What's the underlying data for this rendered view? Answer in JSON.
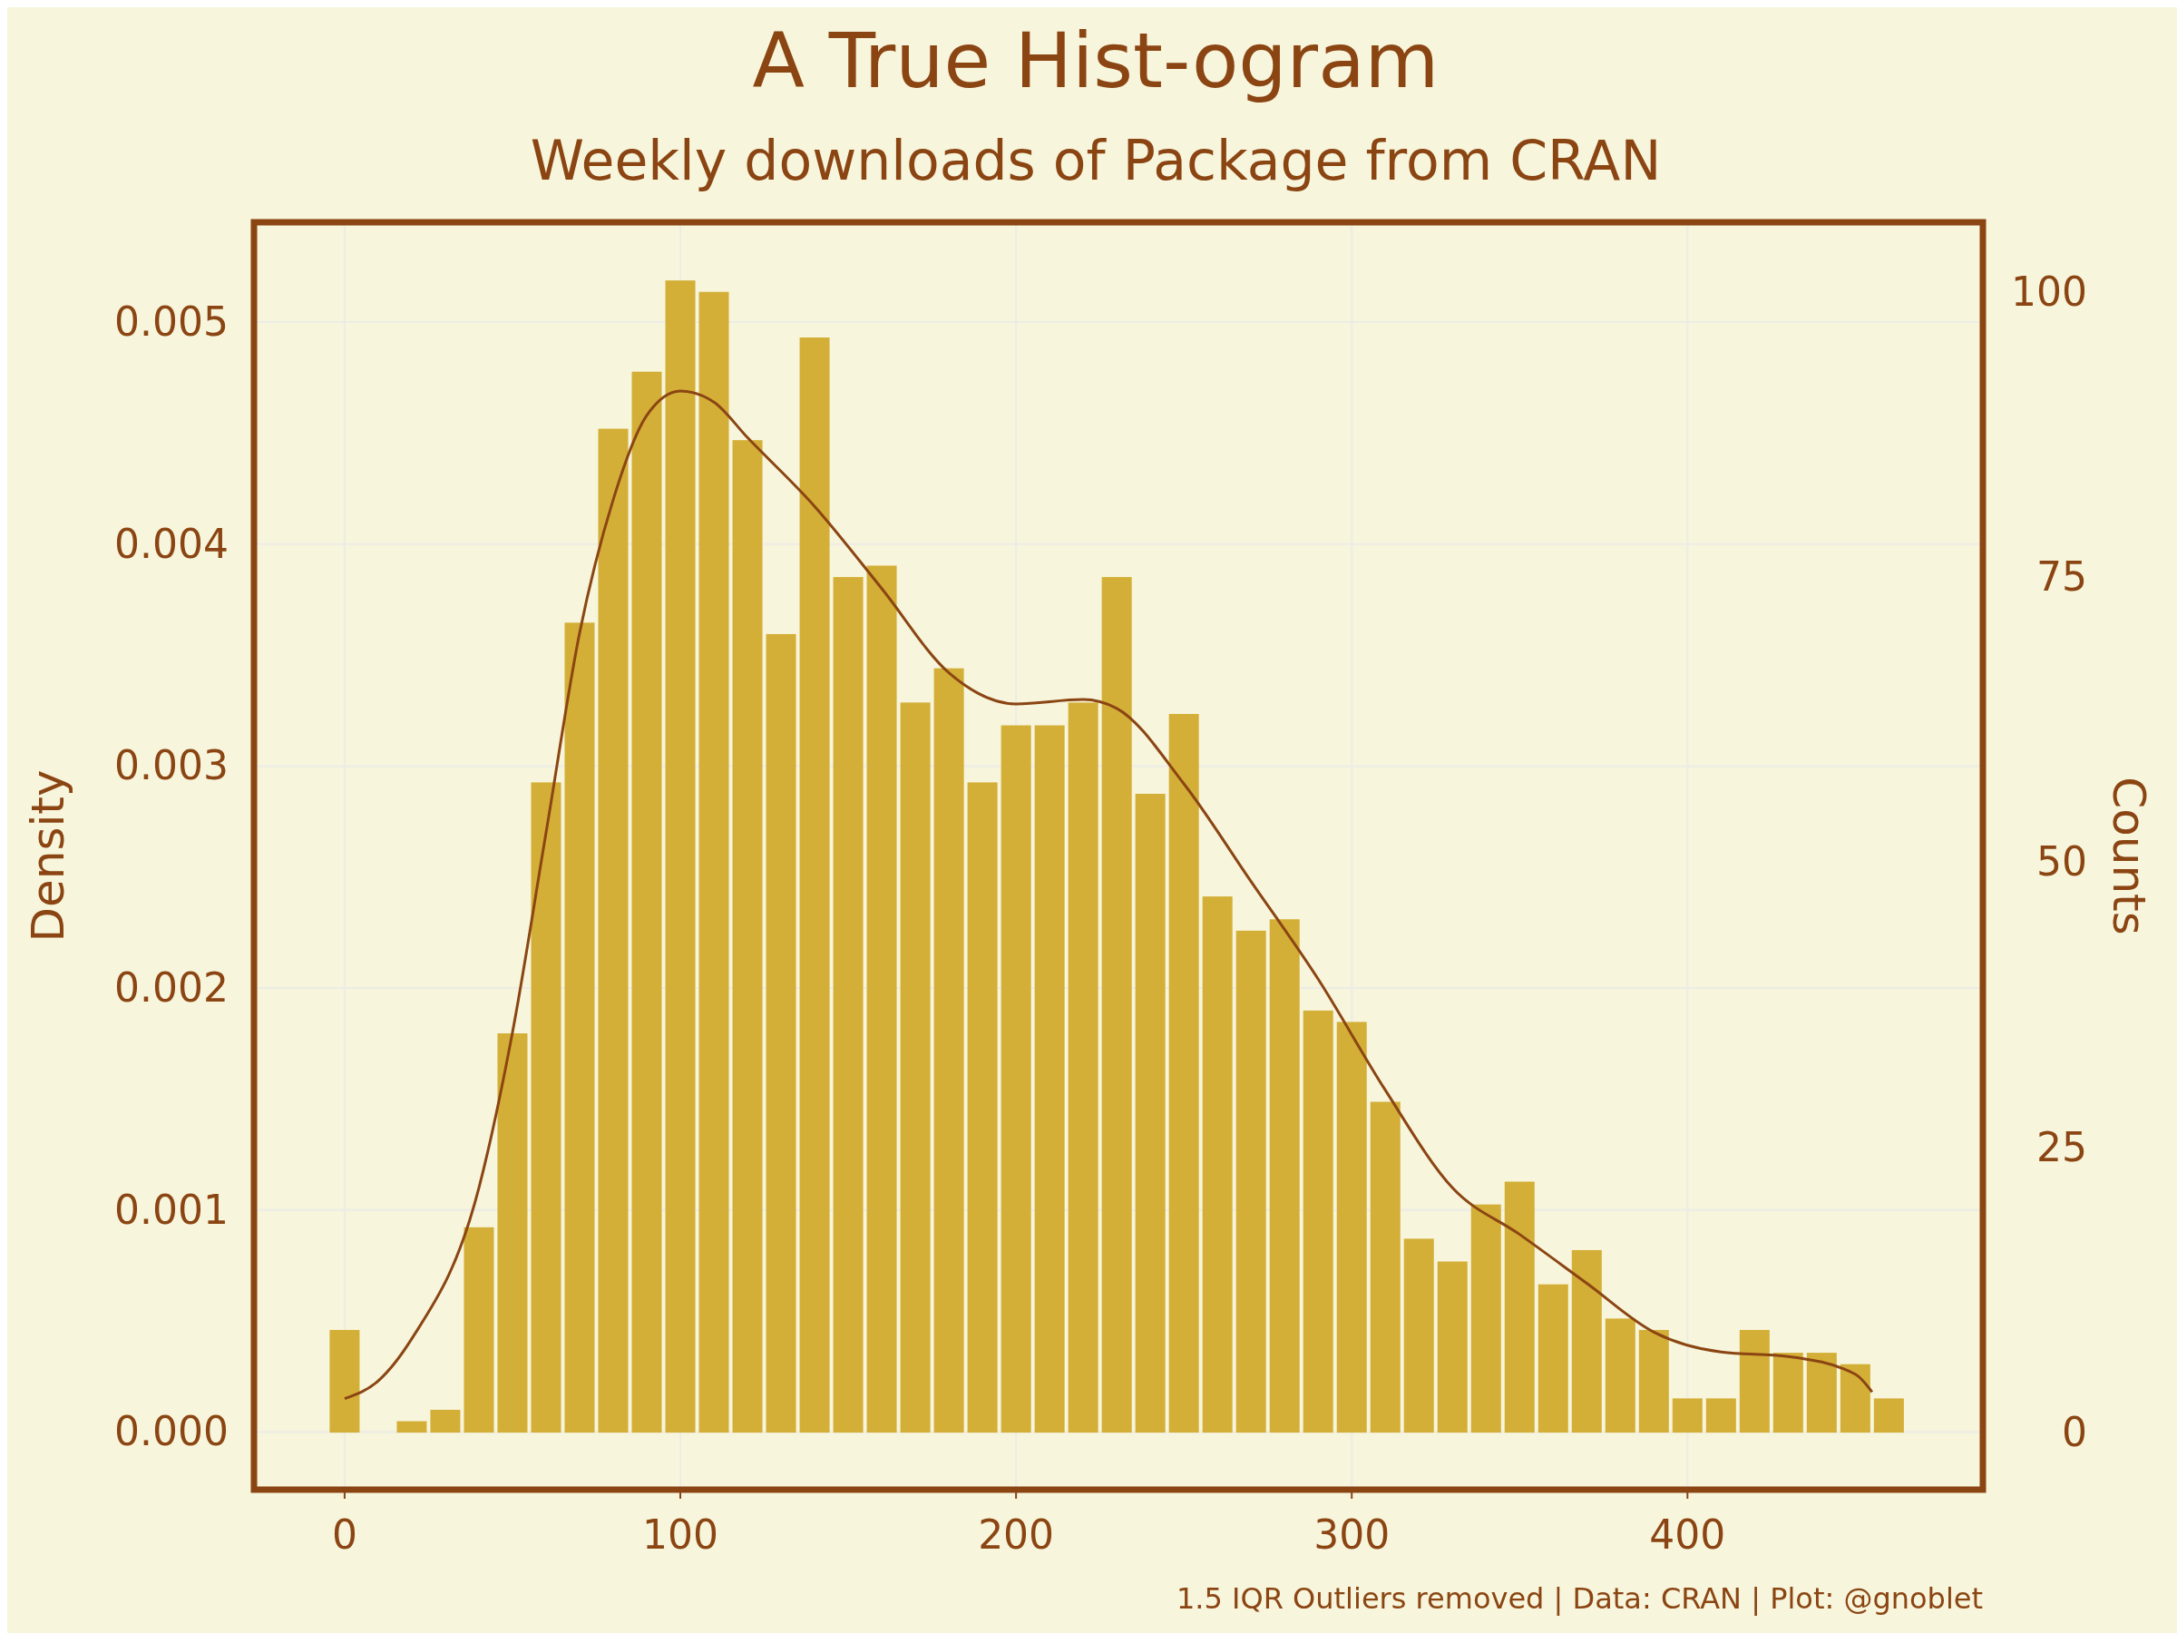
{
  "chart_data": {
    "type": "histogram",
    "title": "A True Hist-ogram",
    "subtitle": "Weekly downloads of Package from CRAN",
    "ylabel": "Density",
    "y2label": "Counts",
    "annotations": [
      "1.5 IQR Outliers removed | Data: CRAN | Plot: @gnoblet"
    ],
    "bins": [
      -5,
      5,
      15,
      25,
      35,
      45,
      55,
      65,
      75,
      85,
      95,
      105,
      115,
      125,
      135,
      145,
      155,
      165,
      175,
      185,
      195,
      205,
      215,
      225,
      235,
      245,
      255,
      265,
      275,
      285,
      295,
      305,
      315,
      325,
      335,
      345,
      355,
      365,
      375,
      385,
      395,
      405,
      415,
      425,
      435,
      445,
      455,
      465
    ],
    "series": [
      {
        "axis": "y2",
        "color": "#d4af37",
        "values": [
          9,
          0,
          1,
          2,
          18,
          35,
          57,
          71,
          88,
          93,
          101,
          100,
          87,
          70,
          96,
          75,
          76,
          64,
          67,
          57,
          62,
          62,
          64,
          75,
          56,
          63,
          47,
          44,
          45,
          37,
          36,
          29,
          17,
          15,
          20,
          22,
          13,
          16,
          10,
          9,
          3,
          3,
          9,
          7,
          7,
          6,
          3
        ]
      },
      {
        "type": "line",
        "color": "#8b4513",
        "x": [
          0,
          10,
          20,
          40,
          50,
          60,
          70,
          80,
          90,
          100,
          110,
          120,
          140,
          160,
          180,
          200,
          220,
          230,
          250,
          270,
          290,
          310,
          330,
          350,
          370,
          390,
          410,
          430,
          450,
          455
        ],
        "values": [
          0.00015,
          0.00023,
          0.00042,
          0.0011,
          0.0018,
          0.0027,
          0.0036,
          0.0042,
          0.00458,
          0.00469,
          0.00464,
          0.00448,
          0.00417,
          0.0038,
          0.00342,
          0.00328,
          0.0033,
          0.00326,
          0.00292,
          0.00248,
          0.00204,
          0.00154,
          0.0011,
          0.00089,
          0.00067,
          0.00045,
          0.00036,
          0.00034,
          0.00026,
          0.00018
        ]
      }
    ],
    "xlim": [
      -27,
      488
    ],
    "xticks": [
      0,
      100,
      200,
      300,
      400
    ],
    "ylim": [
      -0.00026,
      0.00545
    ],
    "yticks": [
      {
        "value": 0,
        "label": "0.000"
      },
      {
        "value": 0.001,
        "label": "0.001"
      },
      {
        "value": 0.002,
        "label": "0.002"
      },
      {
        "value": 0.003,
        "label": "0.003"
      },
      {
        "value": 0.004,
        "label": "0.004"
      },
      {
        "value": 0.005,
        "label": "0.005"
      }
    ],
    "y2lim": [
      -5,
      106.1
    ],
    "y2ticks": [
      0,
      25,
      50,
      75,
      100
    ],
    "grid": true
  }
}
